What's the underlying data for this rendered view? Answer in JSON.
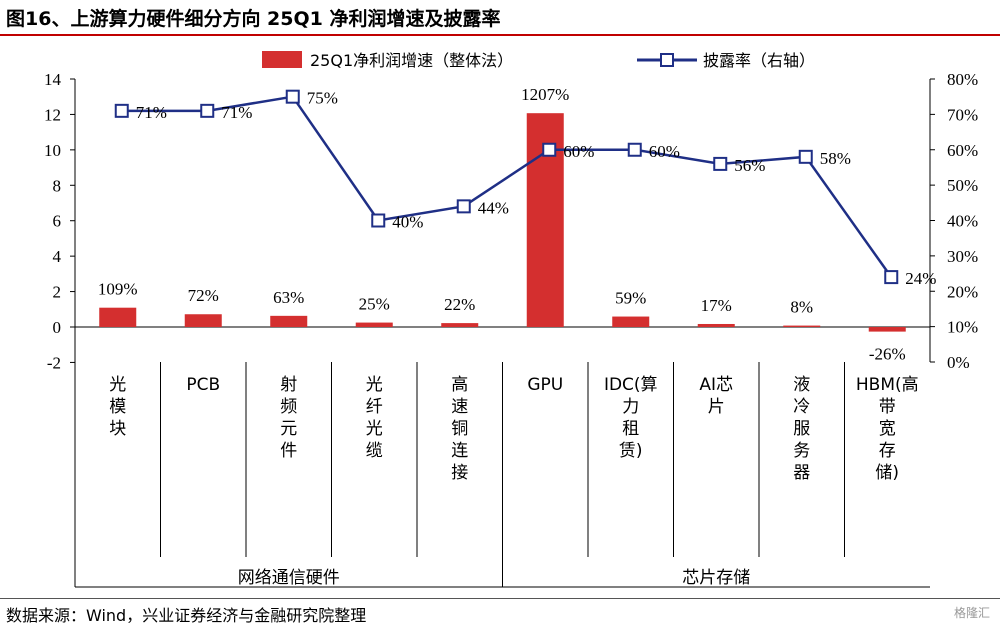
{
  "title": "图16、上游算力硬件细分方向 25Q1 净利润增速及披露率",
  "source": "数据来源：Wind，兴业证券经济与金融研究院整理",
  "watermark": "格隆汇",
  "colors": {
    "bar": "#d42f2f",
    "line": "#1f2f86",
    "text": "#000000"
  },
  "chart_data": {
    "type": "bar+line",
    "categories": [
      "光模块",
      "PCB",
      "射频元件",
      "光纤光缆",
      "高速铜连接",
      "GPU",
      "IDC(算力租赁)",
      "AI芯片",
      "液冷服务器",
      "HBM(高带宽存储)"
    ],
    "category_lines": [
      [
        "光",
        "模",
        "块"
      ],
      [
        "PCB"
      ],
      [
        "射",
        "频",
        "元",
        "件"
      ],
      [
        "光",
        "纤",
        "光",
        "缆"
      ],
      [
        "高",
        "速",
        "铜",
        "连",
        "接"
      ],
      [
        "GPU"
      ],
      [
        "IDC(算",
        "力",
        "租",
        "赁)"
      ],
      [
        "AI芯",
        "片"
      ],
      [
        "液",
        "冷",
        "服",
        "务",
        "器"
      ],
      [
        "HBM(高",
        "带",
        "宽",
        "存",
        "储)"
      ]
    ],
    "groups": [
      {
        "label": "网络通信硬件",
        "span": [
          0,
          4
        ]
      },
      {
        "label": "芯片存储",
        "span": [
          5,
          9
        ]
      }
    ],
    "series": [
      {
        "name": "25Q1净利润增速（整体法）",
        "type": "bar",
        "axis": "left",
        "values": [
          1.09,
          0.72,
          0.63,
          0.25,
          0.22,
          12.07,
          0.59,
          0.17,
          0.08,
          -0.26
        ],
        "labels": [
          "109%",
          "72%",
          "63%",
          "25%",
          "22%",
          "1207%",
          "59%",
          "17%",
          "8%",
          "-26%"
        ]
      },
      {
        "name": "披露率（右轴）",
        "type": "line",
        "axis": "right",
        "values": [
          71,
          71,
          75,
          40,
          44,
          60,
          60,
          56,
          58,
          24
        ],
        "labels": [
          "71%",
          "71%",
          "75%",
          "40%",
          "44%",
          "60%",
          "60%",
          "56%",
          "58%",
          "24%"
        ]
      }
    ],
    "y_left": {
      "min": -2,
      "max": 14,
      "ticks": [
        "-2",
        "0",
        "2",
        "4",
        "6",
        "8",
        "10",
        "12",
        "14"
      ]
    },
    "y_right": {
      "min": 0,
      "max": 80,
      "ticks": [
        "0%",
        "10%",
        "20%",
        "30%",
        "40%",
        "50%",
        "60%",
        "70%",
        "80%"
      ]
    },
    "grid": false,
    "legend_position": "top"
  }
}
